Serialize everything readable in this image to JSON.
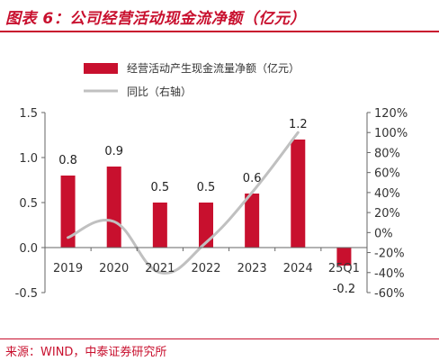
{
  "title": "图表 6：公司经营活动现金流净额（亿元）",
  "source": "来源：WIND，中泰证券研究所",
  "colors": {
    "bar": "#c8102e",
    "line": "#c0c0c0",
    "accent": "#c8102e",
    "axis": "#666666"
  },
  "chart_data": {
    "type": "bar",
    "categories": [
      "2019",
      "2020",
      "2021",
      "2022",
      "2023",
      "2024",
      "25Q1"
    ],
    "series": [
      {
        "name": "经营活动产生现金流量净额（亿元）",
        "type": "bar",
        "axis": "left",
        "values": [
          0.8,
          0.9,
          0.5,
          0.5,
          0.6,
          1.2,
          -0.2
        ],
        "labels": [
          "0.8",
          "0.9",
          "0.5",
          "0.5",
          "0.6",
          "1.2",
          "-0.2"
        ]
      },
      {
        "name": "同比（右轴）",
        "type": "line",
        "axis": "right",
        "values": [
          -5,
          11,
          -40,
          -10,
          40,
          100,
          null
        ]
      }
    ],
    "left_axis": {
      "ylim": [
        -0.5,
        1.5
      ],
      "ticks": [
        "-0.5",
        "0.0",
        "0.5",
        "1.0",
        "1.5"
      ],
      "tick_values": [
        -0.5,
        0,
        0.5,
        1.0,
        1.5
      ]
    },
    "right_axis": {
      "ylim": [
        -60,
        120
      ],
      "ticks": [
        "-60%",
        "-40%",
        "-20%",
        "0%",
        "20%",
        "40%",
        "60%",
        "80%",
        "100%",
        "120%"
      ],
      "tick_values": [
        -60,
        -40,
        -20,
        0,
        20,
        40,
        60,
        80,
        100,
        120
      ]
    },
    "legend": "top",
    "grid": false
  }
}
